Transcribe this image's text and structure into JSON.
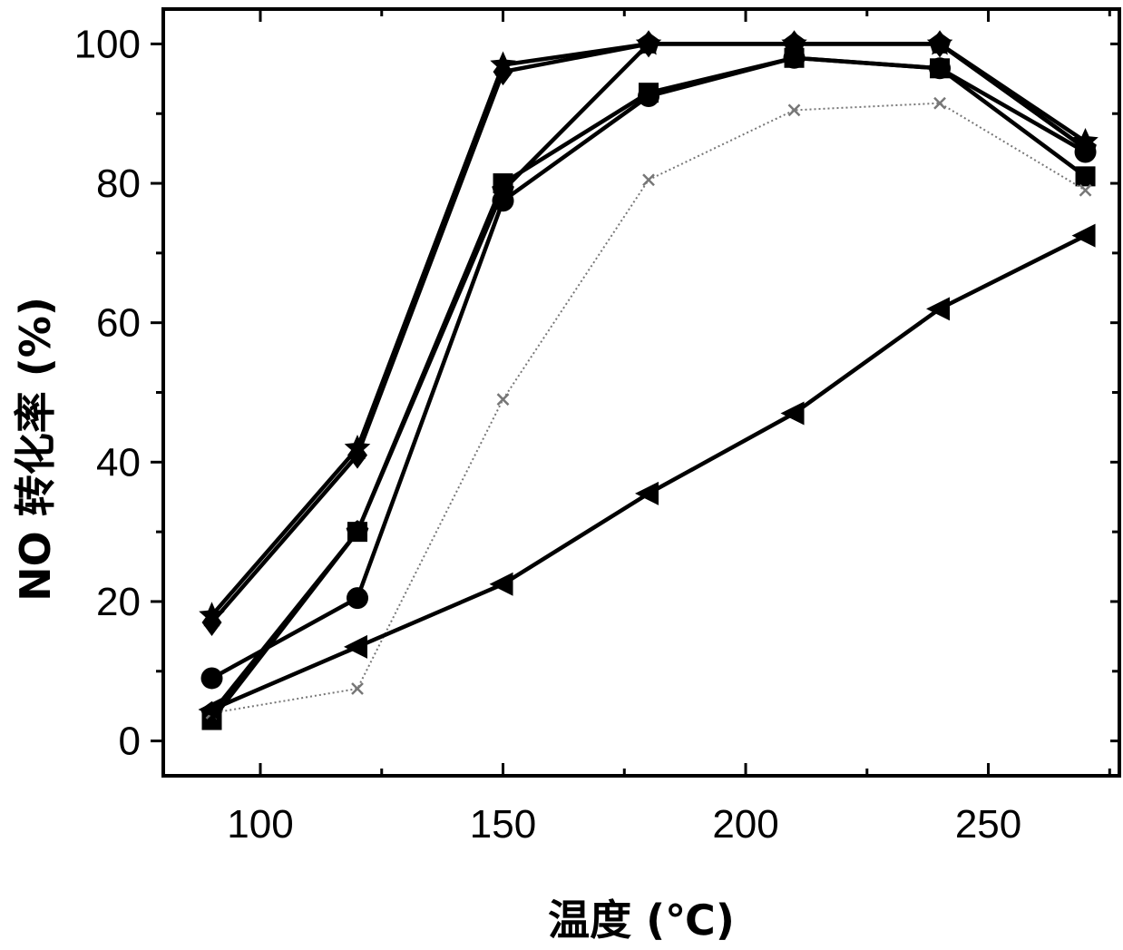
{
  "chart_data": {
    "type": "line",
    "title": "",
    "xlabel": "温度 (℃)",
    "ylabel": "NO 转化率 (%)",
    "xlim": [
      80,
      277
    ],
    "ylim": [
      -5,
      105
    ],
    "xticks": [
      100,
      150,
      200,
      250
    ],
    "yticks": [
      0,
      20,
      40,
      60,
      80,
      100
    ],
    "grid": false,
    "legend": "none",
    "x": [
      90,
      120,
      150,
      180,
      210,
      240,
      270
    ],
    "series": [
      {
        "marker": "star",
        "color": "#000000",
        "style": "solid",
        "values": [
          18,
          42,
          97,
          100,
          100,
          100,
          86
        ]
      },
      {
        "marker": "diamond",
        "color": "#000000",
        "style": "solid",
        "values": [
          17,
          41,
          96,
          100,
          100,
          100,
          85
        ]
      },
      {
        "marker": "pentagon",
        "color": "#000000",
        "style": "solid",
        "values": [
          4,
          30,
          79,
          100,
          100,
          100,
          85
        ]
      },
      {
        "marker": "circle",
        "color": "#000000",
        "style": "solid",
        "values": [
          9,
          20.5,
          77.5,
          92.5,
          98,
          96.5,
          84.5
        ]
      },
      {
        "marker": "square",
        "color": "#000000",
        "style": "solid",
        "values": [
          3,
          30,
          80,
          93,
          98,
          96.5,
          81
        ]
      },
      {
        "marker": "cross",
        "color": "#777777",
        "style": "dotted",
        "values": [
          4,
          7.5,
          49,
          80.5,
          90.5,
          91.5,
          79
        ]
      },
      {
        "marker": "triangle-left",
        "color": "#000000",
        "style": "solid",
        "values": [
          4.5,
          13.5,
          22.5,
          35.5,
          47,
          62,
          72.5
        ]
      }
    ]
  }
}
